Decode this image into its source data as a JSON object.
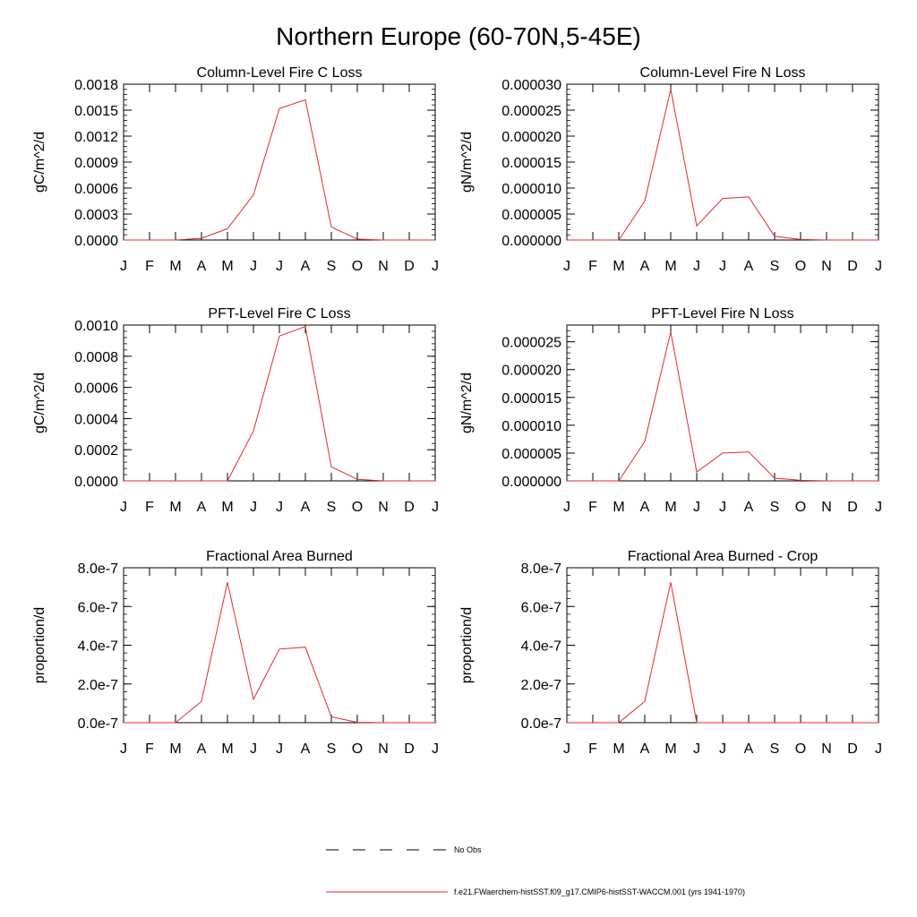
{
  "figure": {
    "title": "Northern Europe (60-70N,5-45E)"
  },
  "colors": {
    "series": "#e8242c",
    "obs": "#000000",
    "axis": "#000000"
  },
  "legend": {
    "placement": "bottom-center",
    "obs_label": "No Obs",
    "model_label": "f.e21.FWaerchem-histSST.f09_g17.CMIP6-histSST-WACCM.001 (yrs 1941-1970)"
  },
  "chart_data": [
    {
      "type": "line",
      "title": "Column-Level Fire C Loss",
      "ylabel": "gC/m^2/d",
      "categories": [
        "J",
        "F",
        "M",
        "A",
        "M",
        "J",
        "J",
        "A",
        "S",
        "O",
        "N",
        "D",
        "J"
      ],
      "ylim": [
        0,
        0.0018
      ],
      "yticks": [
        0,
        0.0003,
        0.0006,
        0.0009,
        0.0012,
        0.0015,
        0.0018
      ],
      "ytick_labels": [
        "0.0000",
        "0.0003",
        "0.0006",
        "0.0009",
        "0.0012",
        "0.0015",
        "0.0018"
      ],
      "series": [
        {
          "name": "f.e21.FWaerchem-histSST.f09_g17.CMIP6-histSST-WACCM.001 (yrs 1941-1970)",
          "values": [
            0,
            0,
            0,
            2e-05,
            0.00013,
            0.00052,
            0.00152,
            0.00162,
            0.00015,
            1e-05,
            0,
            0,
            0
          ]
        }
      ]
    },
    {
      "type": "line",
      "title": "Column-Level Fire N Loss",
      "ylabel": "gN/m^2/d",
      "categories": [
        "J",
        "F",
        "M",
        "A",
        "M",
        "J",
        "J",
        "A",
        "S",
        "O",
        "N",
        "D",
        "J"
      ],
      "ylim": [
        0,
        3e-05
      ],
      "yticks": [
        0,
        5e-06,
        1e-05,
        1.5e-05,
        2e-05,
        2.5e-05,
        3e-05
      ],
      "ytick_labels": [
        "0.000000",
        "0.000005",
        "0.000010",
        "0.000015",
        "0.000020",
        "0.000025",
        "0.000030"
      ],
      "series": [
        {
          "name": "f.e21.FWaerchem-histSST.f09_g17.CMIP6-histSST-WACCM.001 (yrs 1941-1970)",
          "values": [
            0,
            0,
            0,
            7.5e-06,
            2.9e-05,
            2.7e-06,
            8e-06,
            8.3e-06,
            7e-07,
            1e-07,
            0,
            0,
            0
          ]
        }
      ]
    },
    {
      "type": "line",
      "title": "PFT-Level Fire C Loss",
      "ylabel": "gC/m^2/d",
      "categories": [
        "J",
        "F",
        "M",
        "A",
        "M",
        "J",
        "J",
        "A",
        "S",
        "O",
        "N",
        "D",
        "J"
      ],
      "ylim": [
        0,
        0.001
      ],
      "yticks": [
        0,
        0.0002,
        0.0004,
        0.0006,
        0.0008,
        0.001
      ],
      "ytick_labels": [
        "0.0000",
        "0.0002",
        "0.0004",
        "0.0006",
        "0.0008",
        "0.0010"
      ],
      "series": [
        {
          "name": "f.e21.FWaerchem-histSST.f09_g17.CMIP6-histSST-WACCM.001 (yrs 1941-1970)",
          "values": [
            0,
            0,
            0,
            0,
            0,
            0.00032,
            0.00093,
            0.00099,
            9e-05,
            1e-05,
            0,
            0,
            0
          ]
        }
      ]
    },
    {
      "type": "line",
      "title": "PFT-Level Fire N Loss",
      "ylabel": "gN/m^2/d",
      "categories": [
        "J",
        "F",
        "M",
        "A",
        "M",
        "J",
        "J",
        "A",
        "S",
        "O",
        "N",
        "D",
        "J"
      ],
      "ylim": [
        0,
        2.8e-05
      ],
      "yticks": [
        0,
        5e-06,
        1e-05,
        1.5e-05,
        2e-05,
        2.5e-05
      ],
      "ytick_labels": [
        "0.000000",
        "0.000005",
        "0.000010",
        "0.000015",
        "0.000020",
        "0.000025"
      ],
      "series": [
        {
          "name": "f.e21.FWaerchem-histSST.f09_g17.CMIP6-histSST-WACCM.001 (yrs 1941-1970)",
          "values": [
            0,
            0,
            0,
            7.1e-06,
            2.68e-05,
            1.6e-06,
            5e-06,
            5.2e-06,
            5e-07,
            1e-07,
            0,
            0,
            0
          ]
        }
      ]
    },
    {
      "type": "line",
      "title": "Fractional Area Burned",
      "ylabel": "proportion/d",
      "categories": [
        "J",
        "F",
        "M",
        "A",
        "M",
        "J",
        "J",
        "A",
        "S",
        "O",
        "N",
        "D",
        "J"
      ],
      "ylim": [
        0,
        8e-07
      ],
      "yticks": [
        0,
        2e-07,
        4e-07,
        6e-07,
        8e-07
      ],
      "ytick_labels": [
        "0.0e-7",
        "2.0e-7",
        "4.0e-7",
        "6.0e-7",
        "8.0e-7"
      ],
      "series": [
        {
          "name": "f.e21.FWaerchem-histSST.f09_g17.CMIP6-histSST-WACCM.001 (yrs 1941-1970)",
          "values": [
            0,
            0,
            0,
            1.1e-07,
            7.25e-07,
            1.2e-07,
            3.8e-07,
            3.9e-07,
            3e-08,
            2e-09,
            0,
            0,
            0
          ]
        }
      ]
    },
    {
      "type": "line",
      "title": "Fractional Area Burned - Crop",
      "ylabel": "proportion/d",
      "categories": [
        "J",
        "F",
        "M",
        "A",
        "M",
        "J",
        "J",
        "A",
        "S",
        "O",
        "N",
        "D",
        "J"
      ],
      "ylim": [
        0,
        8e-07
      ],
      "yticks": [
        0,
        2e-07,
        4e-07,
        6e-07,
        8e-07
      ],
      "ytick_labels": [
        "0.0e-7",
        "2.0e-7",
        "4.0e-7",
        "6.0e-7",
        "8.0e-7"
      ],
      "series": [
        {
          "name": "f.e21.FWaerchem-histSST.f09_g17.CMIP6-histSST-WACCM.001 (yrs 1941-1970)",
          "values": [
            0,
            0,
            0,
            1.1e-07,
            7.25e-07,
            0,
            0,
            0,
            0,
            0,
            0,
            0,
            0
          ]
        }
      ]
    }
  ]
}
